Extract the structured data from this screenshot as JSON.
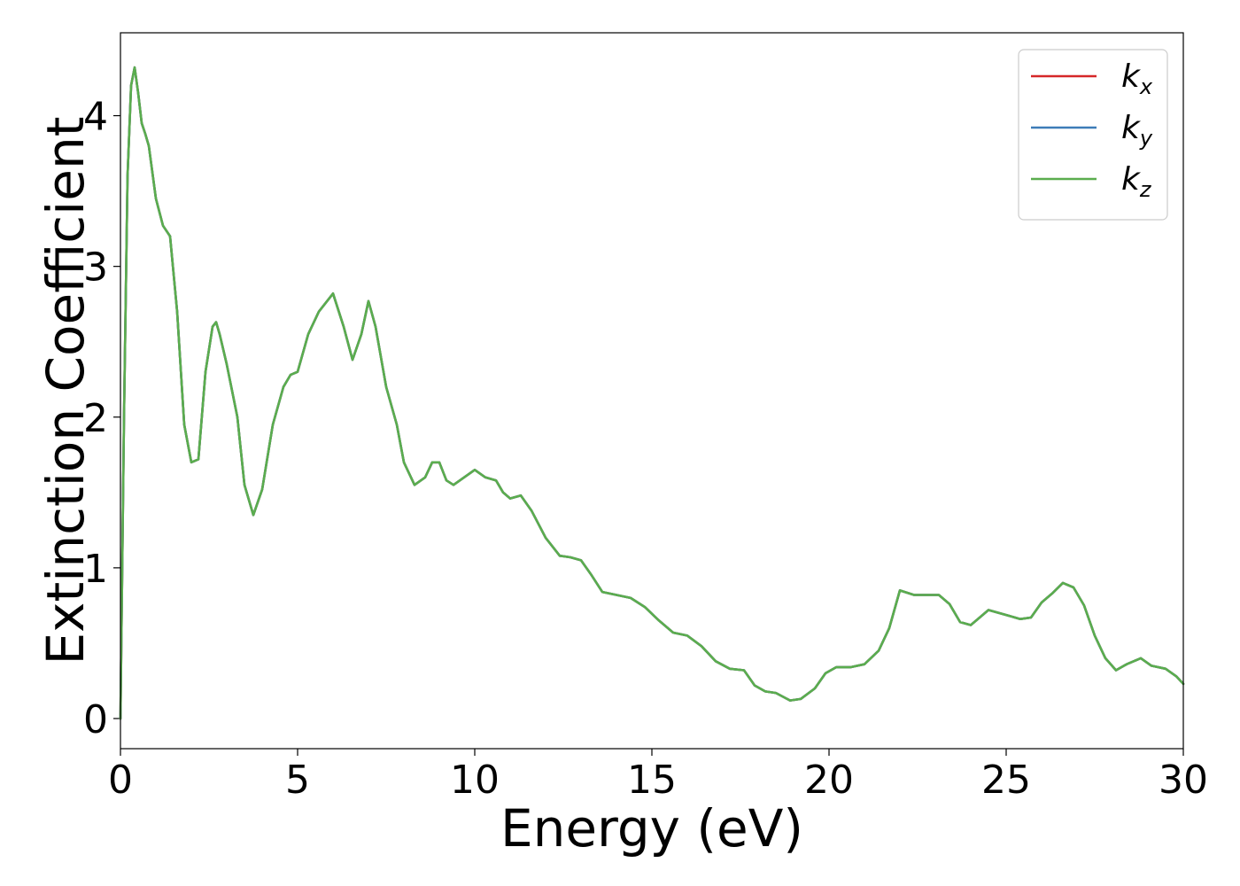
{
  "chart_data": {
    "type": "line",
    "title": "",
    "xlabel": "Energy (eV)",
    "ylabel": "Extinction Coefficient",
    "xlim": [
      0,
      30
    ],
    "ylim": [
      -0.2,
      4.55
    ],
    "xticks": [
      0,
      5,
      10,
      15,
      20,
      25,
      30
    ],
    "yticks": [
      0,
      1,
      2,
      3,
      4
    ],
    "grid": false,
    "legend_position": "top-right",
    "series": [
      {
        "name": "k_x",
        "label_base": "k",
        "label_sub": "x",
        "color": "#d62728",
        "x": [
          0,
          0.1,
          0.2,
          0.3,
          0.4,
          0.5,
          0.6,
          0.7,
          0.8,
          1.0,
          1.2,
          1.4,
          1.6,
          1.8,
          2.0,
          2.2,
          2.4,
          2.6,
          2.7,
          2.8,
          3.0,
          3.3,
          3.5,
          3.75,
          4.0,
          4.3,
          4.6,
          4.8,
          5.0,
          5.3,
          5.6,
          6.0,
          6.3,
          6.55,
          6.8,
          7.0,
          7.2,
          7.5,
          7.8,
          8.0,
          8.3,
          8.6,
          8.8,
          9.0,
          9.2,
          9.4,
          9.7,
          10.0,
          10.3,
          10.6,
          10.8,
          11.0,
          11.3,
          11.6,
          12.0,
          12.4,
          12.7,
          13.0,
          13.3,
          13.6,
          14.0,
          14.4,
          14.8,
          15.2,
          15.6,
          16.0,
          16.4,
          16.8,
          17.2,
          17.6,
          17.9,
          18.2,
          18.5,
          18.9,
          19.2,
          19.6,
          19.9,
          20.2,
          20.6,
          21.0,
          21.4,
          21.7,
          22.0,
          22.4,
          22.8,
          23.1,
          23.4,
          23.7,
          24.0,
          24.2,
          24.5,
          24.8,
          25.1,
          25.4,
          25.7,
          26.0,
          26.3,
          26.6,
          26.9,
          27.2,
          27.5,
          27.8,
          28.1,
          28.4,
          28.8,
          29.1,
          29.5,
          29.8,
          30.0
        ],
        "values": [
          0.0,
          2.0,
          3.6,
          4.2,
          4.32,
          4.15,
          3.95,
          3.88,
          3.8,
          3.45,
          3.27,
          3.2,
          2.7,
          1.95,
          1.7,
          1.72,
          2.3,
          2.6,
          2.63,
          2.55,
          2.35,
          2.0,
          1.55,
          1.35,
          1.52,
          1.95,
          2.2,
          2.28,
          2.3,
          2.55,
          2.7,
          2.82,
          2.6,
          2.38,
          2.55,
          2.77,
          2.6,
          2.2,
          1.95,
          1.7,
          1.55,
          1.6,
          1.7,
          1.7,
          1.58,
          1.55,
          1.6,
          1.65,
          1.6,
          1.58,
          1.5,
          1.46,
          1.48,
          1.38,
          1.2,
          1.08,
          1.07,
          1.05,
          0.95,
          0.84,
          0.82,
          0.8,
          0.74,
          0.65,
          0.57,
          0.55,
          0.48,
          0.38,
          0.33,
          0.32,
          0.22,
          0.18,
          0.17,
          0.12,
          0.13,
          0.2,
          0.3,
          0.34,
          0.34,
          0.36,
          0.45,
          0.6,
          0.85,
          0.82,
          0.82,
          0.82,
          0.76,
          0.64,
          0.62,
          0.66,
          0.72,
          0.7,
          0.68,
          0.66,
          0.67,
          0.77,
          0.83,
          0.9,
          0.87,
          0.75,
          0.55,
          0.4,
          0.32,
          0.36,
          0.4,
          0.35,
          0.33,
          0.28,
          0.23
        ]
      },
      {
        "name": "k_y",
        "label_base": "k",
        "label_sub": "y",
        "color": "#3d7cb8",
        "x": [
          0,
          0.1,
          0.2,
          0.3,
          0.4,
          0.5,
          0.6,
          0.7,
          0.8,
          1.0,
          1.2,
          1.4,
          1.6,
          1.8,
          2.0,
          2.2,
          2.4,
          2.6,
          2.7,
          2.8,
          3.0,
          3.3,
          3.5,
          3.75,
          4.0,
          4.3,
          4.6,
          4.8,
          5.0,
          5.3,
          5.6,
          6.0,
          6.3,
          6.55,
          6.8,
          7.0,
          7.2,
          7.5,
          7.8,
          8.0,
          8.3,
          8.6,
          8.8,
          9.0,
          9.2,
          9.4,
          9.7,
          10.0,
          10.3,
          10.6,
          10.8,
          11.0,
          11.3,
          11.6,
          12.0,
          12.4,
          12.7,
          13.0,
          13.3,
          13.6,
          14.0,
          14.4,
          14.8,
          15.2,
          15.6,
          16.0,
          16.4,
          16.8,
          17.2,
          17.6,
          17.9,
          18.2,
          18.5,
          18.9,
          19.2,
          19.6,
          19.9,
          20.2,
          20.6,
          21.0,
          21.4,
          21.7,
          22.0,
          22.4,
          22.8,
          23.1,
          23.4,
          23.7,
          24.0,
          24.2,
          24.5,
          24.8,
          25.1,
          25.4,
          25.7,
          26.0,
          26.3,
          26.6,
          26.9,
          27.2,
          27.5,
          27.8,
          28.1,
          28.4,
          28.8,
          29.1,
          29.5,
          29.8,
          30.0
        ],
        "values": [
          0.0,
          2.0,
          3.6,
          4.2,
          4.32,
          4.15,
          3.95,
          3.88,
          3.8,
          3.45,
          3.27,
          3.2,
          2.7,
          1.95,
          1.7,
          1.72,
          2.3,
          2.6,
          2.63,
          2.55,
          2.35,
          2.0,
          1.55,
          1.35,
          1.52,
          1.95,
          2.2,
          2.28,
          2.3,
          2.55,
          2.7,
          2.82,
          2.6,
          2.38,
          2.55,
          2.77,
          2.6,
          2.2,
          1.95,
          1.7,
          1.55,
          1.6,
          1.7,
          1.7,
          1.58,
          1.55,
          1.6,
          1.65,
          1.6,
          1.58,
          1.5,
          1.46,
          1.48,
          1.38,
          1.2,
          1.08,
          1.07,
          1.05,
          0.95,
          0.84,
          0.82,
          0.8,
          0.74,
          0.65,
          0.57,
          0.55,
          0.48,
          0.38,
          0.33,
          0.32,
          0.22,
          0.18,
          0.17,
          0.12,
          0.13,
          0.2,
          0.3,
          0.34,
          0.34,
          0.36,
          0.45,
          0.6,
          0.85,
          0.82,
          0.82,
          0.82,
          0.76,
          0.64,
          0.62,
          0.66,
          0.72,
          0.7,
          0.68,
          0.66,
          0.67,
          0.77,
          0.83,
          0.9,
          0.87,
          0.75,
          0.55,
          0.4,
          0.32,
          0.36,
          0.4,
          0.35,
          0.33,
          0.28,
          0.23
        ]
      },
      {
        "name": "k_z",
        "label_base": "k",
        "label_sub": "z",
        "color": "#5aad4e",
        "x": [
          0,
          0.1,
          0.2,
          0.3,
          0.4,
          0.5,
          0.6,
          0.7,
          0.8,
          1.0,
          1.2,
          1.4,
          1.6,
          1.8,
          2.0,
          2.2,
          2.4,
          2.6,
          2.7,
          2.8,
          3.0,
          3.3,
          3.5,
          3.75,
          4.0,
          4.3,
          4.6,
          4.8,
          5.0,
          5.3,
          5.6,
          6.0,
          6.3,
          6.55,
          6.8,
          7.0,
          7.2,
          7.5,
          7.8,
          8.0,
          8.3,
          8.6,
          8.8,
          9.0,
          9.2,
          9.4,
          9.7,
          10.0,
          10.3,
          10.6,
          10.8,
          11.0,
          11.3,
          11.6,
          12.0,
          12.4,
          12.7,
          13.0,
          13.3,
          13.6,
          14.0,
          14.4,
          14.8,
          15.2,
          15.6,
          16.0,
          16.4,
          16.8,
          17.2,
          17.6,
          17.9,
          18.2,
          18.5,
          18.9,
          19.2,
          19.6,
          19.9,
          20.2,
          20.6,
          21.0,
          21.4,
          21.7,
          22.0,
          22.4,
          22.8,
          23.1,
          23.4,
          23.7,
          24.0,
          24.2,
          24.5,
          24.8,
          25.1,
          25.4,
          25.7,
          26.0,
          26.3,
          26.6,
          26.9,
          27.2,
          27.5,
          27.8,
          28.1,
          28.4,
          28.8,
          29.1,
          29.5,
          29.8,
          30.0
        ],
        "values": [
          0.0,
          2.0,
          3.6,
          4.2,
          4.32,
          4.15,
          3.95,
          3.88,
          3.8,
          3.45,
          3.27,
          3.2,
          2.7,
          1.95,
          1.7,
          1.72,
          2.3,
          2.6,
          2.63,
          2.55,
          2.35,
          2.0,
          1.55,
          1.35,
          1.52,
          1.95,
          2.2,
          2.28,
          2.3,
          2.55,
          2.7,
          2.82,
          2.6,
          2.38,
          2.55,
          2.77,
          2.6,
          2.2,
          1.95,
          1.7,
          1.55,
          1.6,
          1.7,
          1.7,
          1.58,
          1.55,
          1.6,
          1.65,
          1.6,
          1.58,
          1.5,
          1.46,
          1.48,
          1.38,
          1.2,
          1.08,
          1.07,
          1.05,
          0.95,
          0.84,
          0.82,
          0.8,
          0.74,
          0.65,
          0.57,
          0.55,
          0.48,
          0.38,
          0.33,
          0.32,
          0.22,
          0.18,
          0.17,
          0.12,
          0.13,
          0.2,
          0.3,
          0.34,
          0.34,
          0.36,
          0.45,
          0.6,
          0.85,
          0.82,
          0.82,
          0.82,
          0.76,
          0.64,
          0.62,
          0.66,
          0.72,
          0.7,
          0.68,
          0.66,
          0.67,
          0.77,
          0.83,
          0.9,
          0.87,
          0.75,
          0.55,
          0.4,
          0.32,
          0.36,
          0.4,
          0.35,
          0.33,
          0.28,
          0.23
        ]
      }
    ]
  }
}
